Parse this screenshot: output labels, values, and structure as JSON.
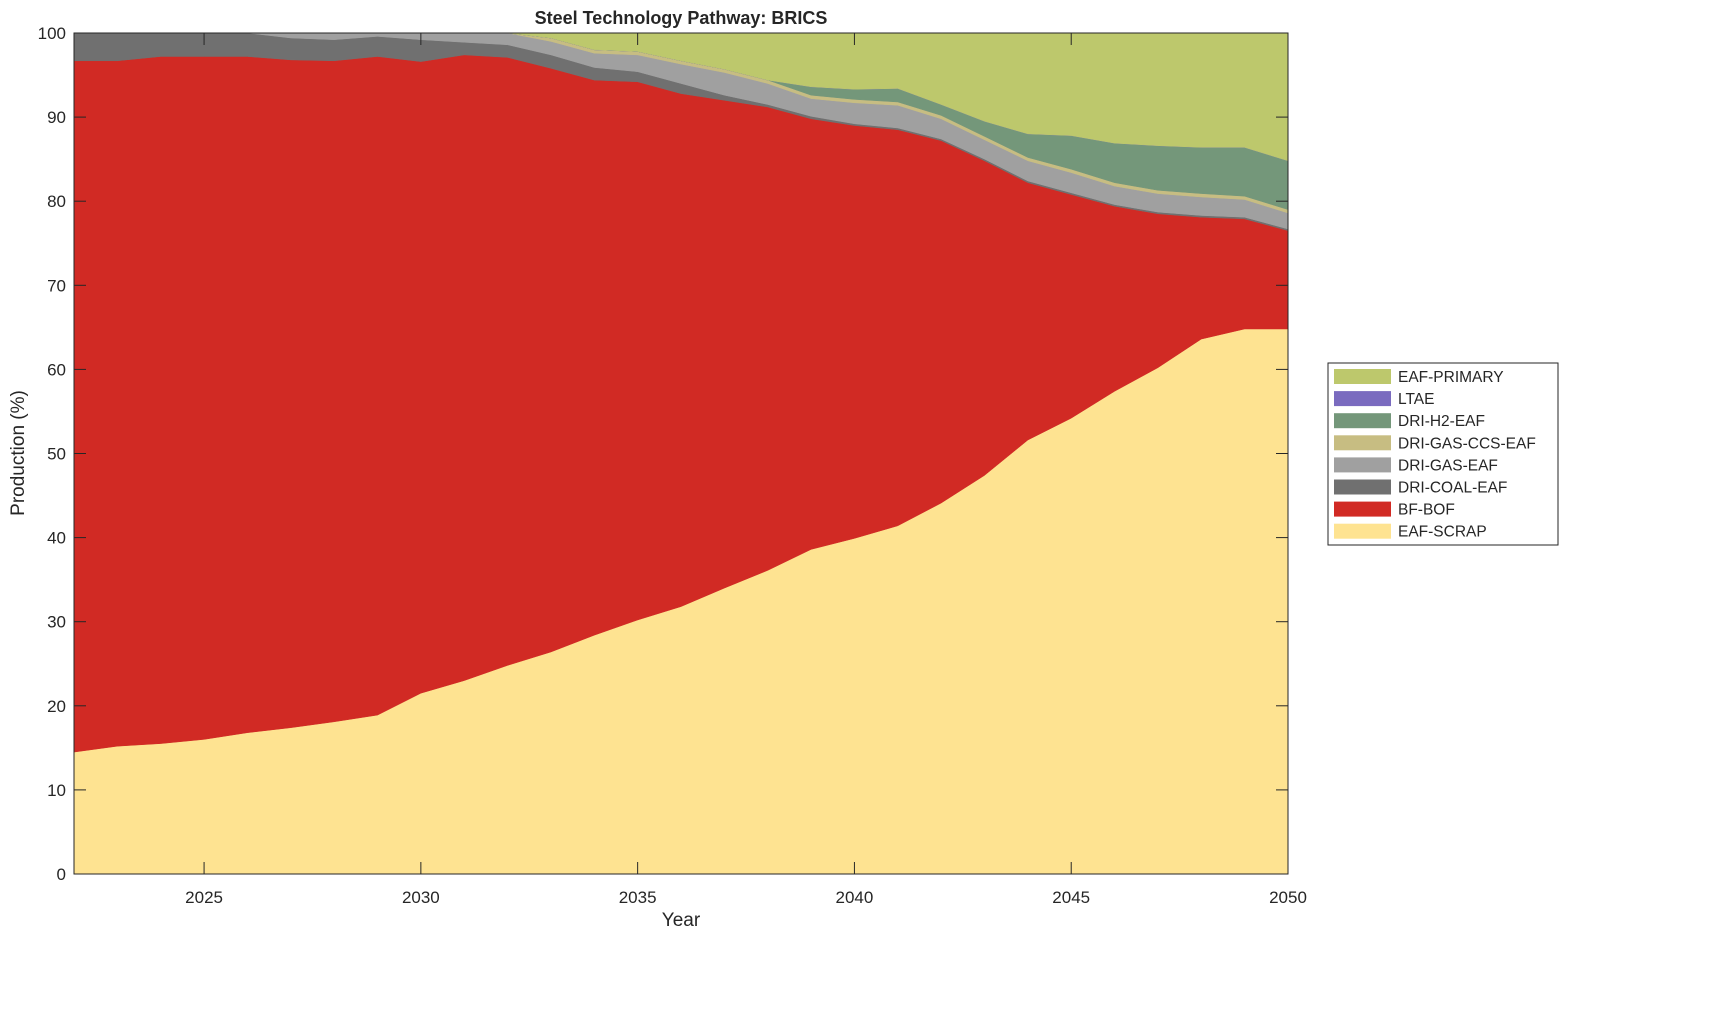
{
  "chart_data": {
    "type": "area",
    "stacked": true,
    "title": "Steel Technology Pathway: BRICS",
    "xlabel": "Year",
    "ylabel": "Production (%)",
    "xlim": [
      2022,
      2050
    ],
    "ylim": [
      0,
      100
    ],
    "xticks": [
      2025,
      2030,
      2035,
      2040,
      2045,
      2050
    ],
    "yticks": [
      0,
      10,
      20,
      30,
      40,
      50,
      60,
      70,
      80,
      90,
      100
    ],
    "grid": false,
    "legend_position": "outside-right",
    "x": [
      2022,
      2023,
      2024,
      2025,
      2026,
      2027,
      2028,
      2029,
      2030,
      2031,
      2032,
      2033,
      2034,
      2035,
      2036,
      2037,
      2038,
      2039,
      2040,
      2041,
      2042,
      2043,
      2044,
      2045,
      2046,
      2047,
      2048,
      2049,
      2050
    ],
    "series": [
      {
        "name": "EAF-SCRAP",
        "color": "#fee391",
        "values": [
          14.5,
          15.2,
          15.5,
          16.0,
          16.8,
          17.4,
          18.1,
          18.9,
          21.5,
          23.0,
          24.8,
          26.4,
          28.4,
          30.2,
          31.8,
          34.0,
          36.1,
          38.6,
          39.9,
          41.4,
          44.1,
          47.4,
          51.6,
          54.2,
          57.4,
          60.2,
          63.6,
          64.8,
          64.8
        ]
      },
      {
        "name": "BF-BOF",
        "color": "#d12a24",
        "values": [
          82.2,
          81.5,
          81.7,
          81.2,
          80.4,
          79.4,
          78.6,
          78.3,
          75.1,
          74.4,
          72.3,
          69.4,
          66.0,
          64.0,
          61.0,
          58.0,
          55.1,
          51.2,
          49.1,
          47.1,
          43.1,
          37.4,
          30.6,
          26.6,
          22.0,
          18.3,
          14.5,
          13.1,
          11.7
        ]
      },
      {
        "name": "DRI-COAL-EAF",
        "color": "#707070",
        "values": [
          3.3,
          3.3,
          2.8,
          2.8,
          2.8,
          2.6,
          2.5,
          2.4,
          2.6,
          1.5,
          1.5,
          1.6,
          1.5,
          1.2,
          1.2,
          0.6,
          0.3,
          0.3,
          0.2,
          0.2,
          0.2,
          0.2,
          0.2,
          0.2,
          0.2,
          0.2,
          0.2,
          0.2,
          0.2
        ]
      },
      {
        "name": "DRI-GAS-EAF",
        "color": "#a0a0a0",
        "values": [
          0,
          0,
          0,
          0,
          0,
          0.6,
          0.8,
          0.4,
          0.8,
          1.1,
          1.4,
          1.6,
          1.7,
          2.0,
          2.3,
          2.7,
          2.5,
          2.1,
          2.5,
          2.7,
          2.4,
          2.3,
          2.4,
          2.4,
          2.2,
          2.2,
          2.2,
          2.1,
          1.9
        ]
      },
      {
        "name": "DRI-GAS-CCS-EAF",
        "color": "#c7bd82",
        "values": [
          0,
          0,
          0,
          0,
          0,
          0,
          0,
          0,
          0,
          0,
          0,
          0.4,
          0.4,
          0.4,
          0.4,
          0.4,
          0.4,
          0.4,
          0.4,
          0.4,
          0.4,
          0.4,
          0.4,
          0.4,
          0.4,
          0.4,
          0.4,
          0.4,
          0.4
        ]
      },
      {
        "name": "DRI-H2-EAF",
        "color": "#74977a",
        "values": [
          0,
          0,
          0,
          0,
          0,
          0,
          0,
          0,
          0,
          0,
          0,
          0,
          0,
          0,
          0,
          0,
          0,
          1.0,
          1.2,
          1.6,
          1.3,
          1.8,
          2.8,
          4.0,
          4.7,
          5.3,
          5.5,
          5.8,
          5.8
        ]
      },
      {
        "name": "LTAE",
        "color": "#7a6bbf",
        "values": [
          0,
          0,
          0,
          0,
          0,
          0,
          0,
          0,
          0,
          0,
          0,
          0,
          0,
          0,
          0,
          0,
          0,
          0,
          0,
          0,
          0,
          0,
          0,
          0,
          0,
          0,
          0,
          0,
          0
        ]
      },
      {
        "name": "EAF-PRIMARY",
        "color": "#bdc86c",
        "values": [
          0,
          0,
          0,
          0,
          0,
          0,
          0,
          0,
          0,
          0,
          0,
          0.6,
          2.0,
          2.2,
          3.3,
          4.3,
          5.6,
          6.4,
          6.7,
          6.6,
          8.5,
          10.5,
          12.0,
          12.2,
          13.1,
          13.4,
          13.6,
          13.6,
          15.2
        ]
      }
    ]
  }
}
